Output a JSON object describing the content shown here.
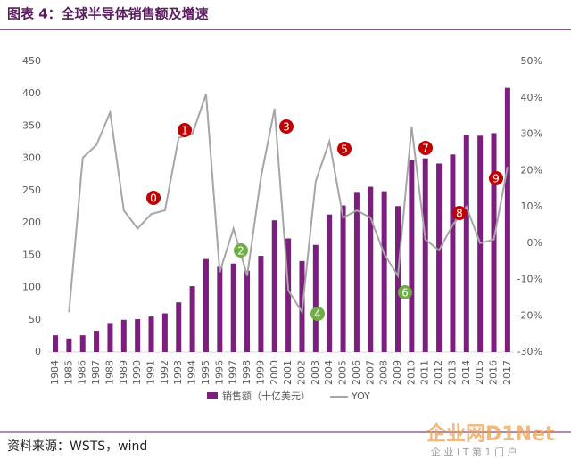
{
  "chart_data": {
    "type": "bar",
    "title": "图表 4：全球半导体销售额及增速",
    "source": "资料来源：WSTS，wind",
    "watermark": "企业网D1Net",
    "watermark_sub": "企 业 I T 第 1 门 户",
    "categories": [
      "1984",
      "1985",
      "1986",
      "1987",
      "1988",
      "1989",
      "1990",
      "1991",
      "1992",
      "1993",
      "1994",
      "1995",
      "1996",
      "1997",
      "1998",
      "1999",
      "2000",
      "2001",
      "2002",
      "2003",
      "2004",
      "2005",
      "2006",
      "2007",
      "2008",
      "2009",
      "2010",
      "2011",
      "2012",
      "2013",
      "2014",
      "2015",
      "2016",
      "2017"
    ],
    "series": [
      {
        "name": "销售额（十亿美元）",
        "color": "#7b1f7e",
        "type": "bar",
        "values": [
          26,
          21,
          26,
          33,
          45,
          50,
          51,
          55,
          60,
          77,
          102,
          144,
          132,
          137,
          126,
          149,
          204,
          176,
          141,
          166,
          213,
          227,
          248,
          256,
          249,
          226,
          298,
          300,
          292,
          306,
          336,
          335,
          339,
          409
        ]
      },
      {
        "name": "YOY",
        "color": "#a6a6a6",
        "type": "line",
        "axis": "y2",
        "values": [
          null,
          -19,
          23.5,
          27,
          36,
          9,
          4,
          8,
          9,
          29,
          30,
          41,
          -8,
          4,
          -9,
          18,
          37,
          -13,
          -19,
          17,
          28,
          7,
          9,
          7,
          -3,
          -9,
          32,
          1,
          -2,
          5,
          10,
          0,
          1,
          21
        ]
      }
    ],
    "ylim": [
      0,
      450
    ],
    "yticks": [
      0,
      50,
      100,
      150,
      200,
      250,
      300,
      350,
      400,
      450
    ],
    "y2lim": [
      -30,
      50
    ],
    "y2ticks": [
      {
        "value": -30,
        "label": "-30%"
      },
      {
        "value": -20,
        "label": "-20%"
      },
      {
        "value": -10,
        "label": "-10%"
      },
      {
        "value": 0,
        "label": "0%"
      },
      {
        "value": 10,
        "label": "10%"
      },
      {
        "value": 20,
        "label": "20%"
      },
      {
        "value": 30,
        "label": "30%"
      },
      {
        "value": 40,
        "label": "40%"
      },
      {
        "value": 50,
        "label": "50%"
      }
    ],
    "annotations": [
      {
        "text": "0",
        "color": "#c00000"
      },
      {
        "text": "1",
        "color": "#c00000"
      },
      {
        "text": "2",
        "color": "#70ad47"
      },
      {
        "text": "3",
        "color": "#c00000"
      },
      {
        "text": "4",
        "color": "#70ad47"
      },
      {
        "text": "5",
        "color": "#c00000"
      },
      {
        "text": "6",
        "color": "#70ad47"
      },
      {
        "text": "7",
        "color": "#c00000"
      },
      {
        "text": "8",
        "color": "#c00000"
      },
      {
        "text": "9",
        "color": "#c00000"
      }
    ],
    "legend": "bottom"
  }
}
